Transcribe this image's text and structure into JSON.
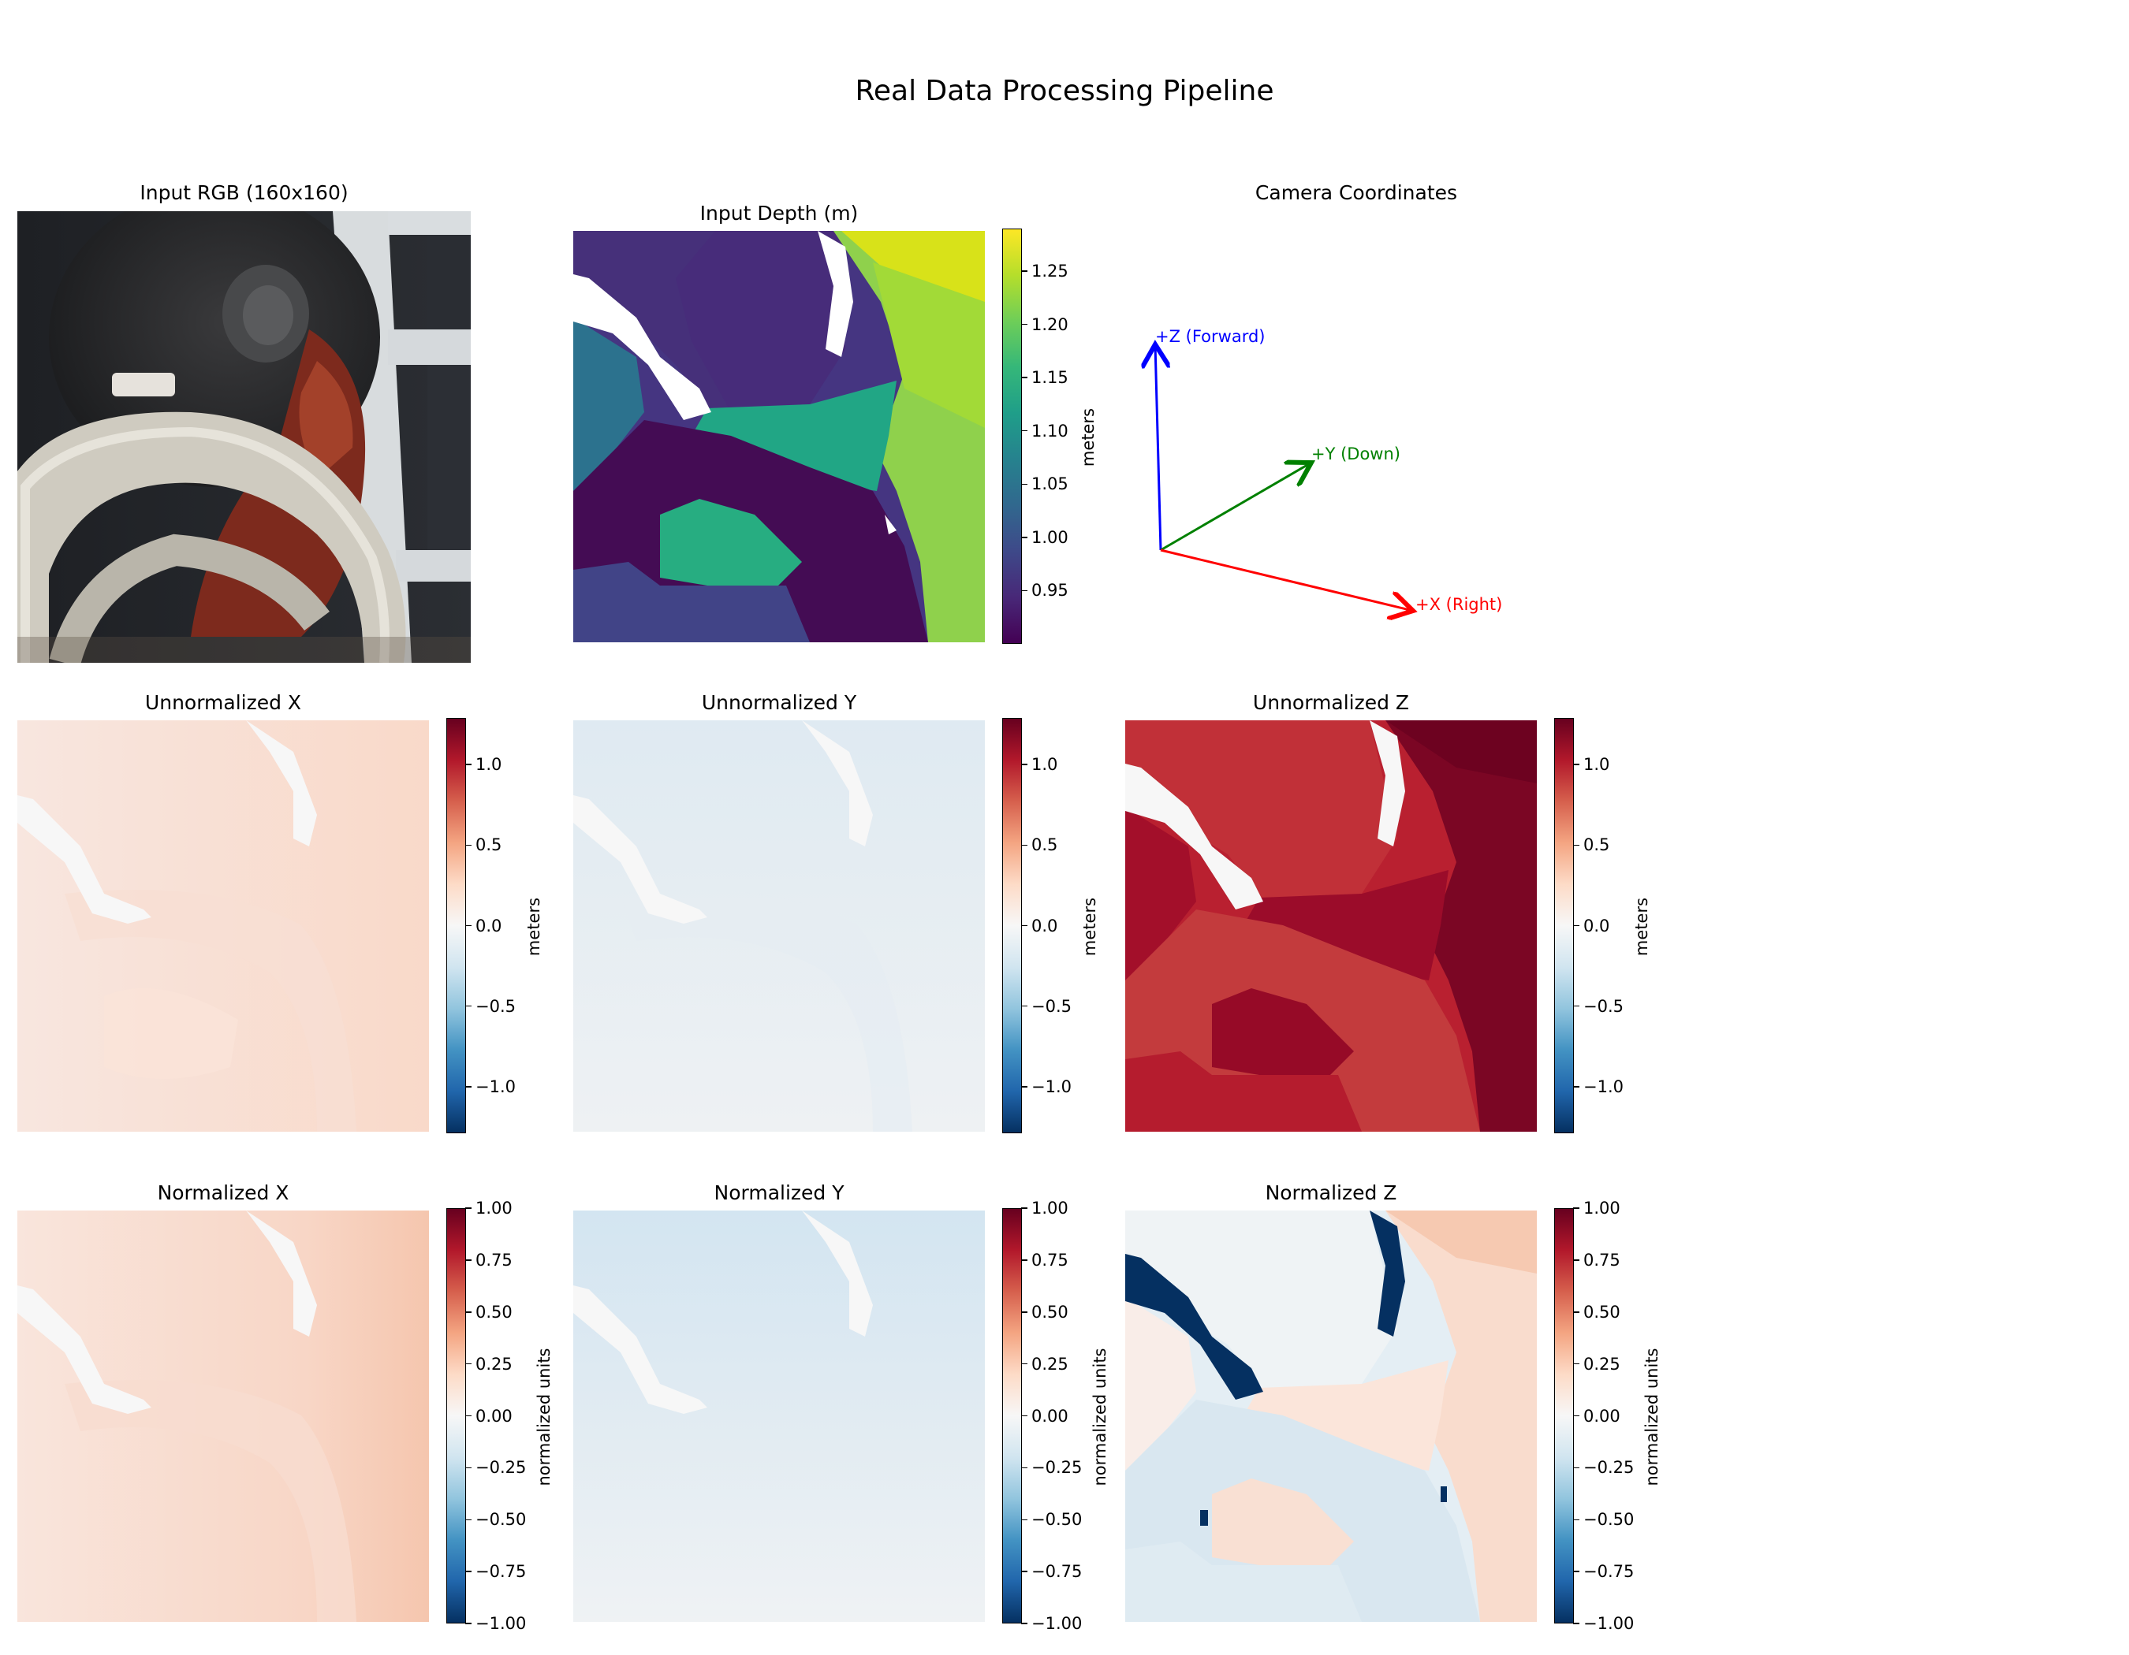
{
  "figure_title": "Real Data Processing Pipeline",
  "chart_data": [
    {
      "type": "heatmap",
      "title": "Input RGB (160x160)",
      "colorbar": null
    },
    {
      "type": "heatmap",
      "title": "Input Depth (m)",
      "colormap": "viridis",
      "colorbar": {
        "label": "meters",
        "range": [
          0.9,
          1.29
        ],
        "ticks": [
          "1.25",
          "1.20",
          "1.15",
          "1.10",
          "1.05",
          "1.00",
          "0.95"
        ],
        "tick_values": [
          1.25,
          1.2,
          1.15,
          1.1,
          1.05,
          1.0,
          0.95
        ]
      }
    },
    {
      "type": "diagram",
      "title": "Camera Coordinates",
      "arrows": [
        {
          "label": "+Z (Forward)",
          "color": "#0000ff"
        },
        {
          "label": "+Y (Down)",
          "color": "#008000"
        },
        {
          "label": "+X (Right)",
          "color": "#ff0000"
        }
      ]
    },
    {
      "type": "heatmap",
      "title": "Unnormalized X",
      "colormap": "RdBu_r",
      "colorbar": {
        "label": "meters",
        "range": [
          -1.29,
          1.29
        ],
        "ticks": [
          "1.0",
          "0.5",
          "0.0",
          "−0.5",
          "−1.0"
        ],
        "tick_values": [
          1.0,
          0.5,
          0.0,
          -0.5,
          -1.0
        ]
      }
    },
    {
      "type": "heatmap",
      "title": "Unnormalized Y",
      "colormap": "RdBu_r",
      "colorbar": {
        "label": "meters",
        "range": [
          -1.29,
          1.29
        ],
        "ticks": [
          "1.0",
          "0.5",
          "0.0",
          "−0.5",
          "−1.0"
        ],
        "tick_values": [
          1.0,
          0.5,
          0.0,
          -0.5,
          -1.0
        ]
      }
    },
    {
      "type": "heatmap",
      "title": "Unnormalized Z",
      "colormap": "RdBu_r",
      "colorbar": {
        "label": "meters",
        "range": [
          -1.29,
          1.29
        ],
        "ticks": [
          "1.0",
          "0.5",
          "0.0",
          "−0.5",
          "−1.0"
        ],
        "tick_values": [
          1.0,
          0.5,
          0.0,
          -0.5,
          -1.0
        ]
      }
    },
    {
      "type": "heatmap",
      "title": "Normalized X",
      "colormap": "RdBu_r",
      "colorbar": {
        "label": "normalized units",
        "range": [
          -1.0,
          1.0
        ],
        "ticks": [
          "1.00",
          "0.75",
          "0.50",
          "0.25",
          "0.00",
          "−0.25",
          "−0.50",
          "−0.75",
          "−1.00"
        ],
        "tick_values": [
          1.0,
          0.75,
          0.5,
          0.25,
          0.0,
          -0.25,
          -0.5,
          -0.75,
          -1.0
        ]
      }
    },
    {
      "type": "heatmap",
      "title": "Normalized Y",
      "colormap": "RdBu_r",
      "colorbar": {
        "label": "normalized units",
        "range": [
          -1.0,
          1.0
        ],
        "ticks": [
          "1.00",
          "0.75",
          "0.50",
          "0.25",
          "0.00",
          "−0.25",
          "−0.50",
          "−0.75",
          "−1.00"
        ],
        "tick_values": [
          1.0,
          0.75,
          0.5,
          0.25,
          0.0,
          -0.25,
          -0.5,
          -0.75,
          -1.0
        ]
      }
    },
    {
      "type": "heatmap",
      "title": "Normalized Z",
      "colormap": "RdBu_r",
      "colorbar": {
        "label": "normalized units",
        "range": [
          -1.0,
          1.0
        ],
        "ticks": [
          "1.00",
          "0.75",
          "0.50",
          "0.25",
          "0.00",
          "−0.25",
          "−0.50",
          "−0.75",
          "−1.00"
        ],
        "tick_values": [
          1.0,
          0.75,
          0.5,
          0.25,
          0.0,
          -0.25,
          -0.5,
          -0.75,
          -1.0
        ]
      }
    }
  ]
}
